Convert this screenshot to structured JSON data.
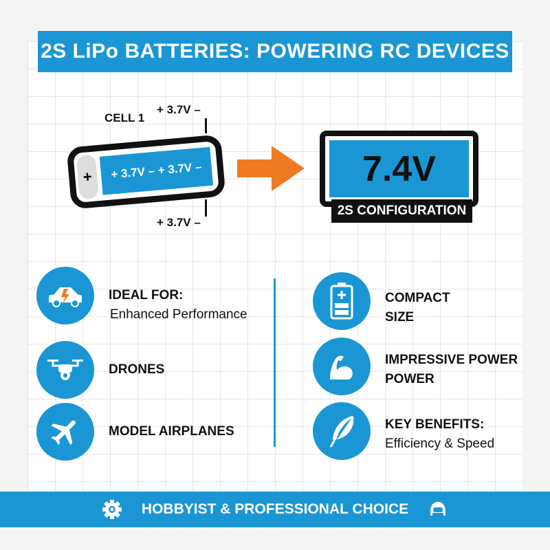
{
  "title": "2S LiPo BATTERIES: POWERING RC DEVICES",
  "battery": {
    "cell_label": "CELL 1",
    "top_terminal": "+ 3.7V –",
    "bottom_terminal": "+ 3.7V –",
    "plus_sign": "+",
    "body_text": "+ 3.7V – + 3.7V –"
  },
  "result": {
    "voltage": "7.4V",
    "configuration": "2S CONFIGURATION"
  },
  "colors": {
    "accent": "#1a96d4",
    "arrow": "#f07a22",
    "dark": "#111111"
  },
  "left_items": [
    {
      "icon": "rc-car-icon",
      "title": "IDEAL FOR:",
      "subtitle": "Enhanced Performance"
    },
    {
      "icon": "drone-icon",
      "title": "DRONES"
    },
    {
      "icon": "airplane-icon",
      "title": "MODEL AIRPLANES"
    }
  ],
  "right_items": [
    {
      "icon": "battery-icon",
      "title": "COMPACT",
      "title2": "SIZE"
    },
    {
      "icon": "flexed-arm-icon",
      "title": "IMPRESSIVE POWER",
      "title2": "POWER"
    },
    {
      "icon": "feather-icon",
      "title": "KEY BENEFITS:",
      "subtitle": "Efficiency & Speed"
    }
  ],
  "footer": {
    "text": "HOBBYIST & PROFESSIONAL CHOICE",
    "left_icon": "gear-icon",
    "right_icon": "helmet-icon"
  }
}
